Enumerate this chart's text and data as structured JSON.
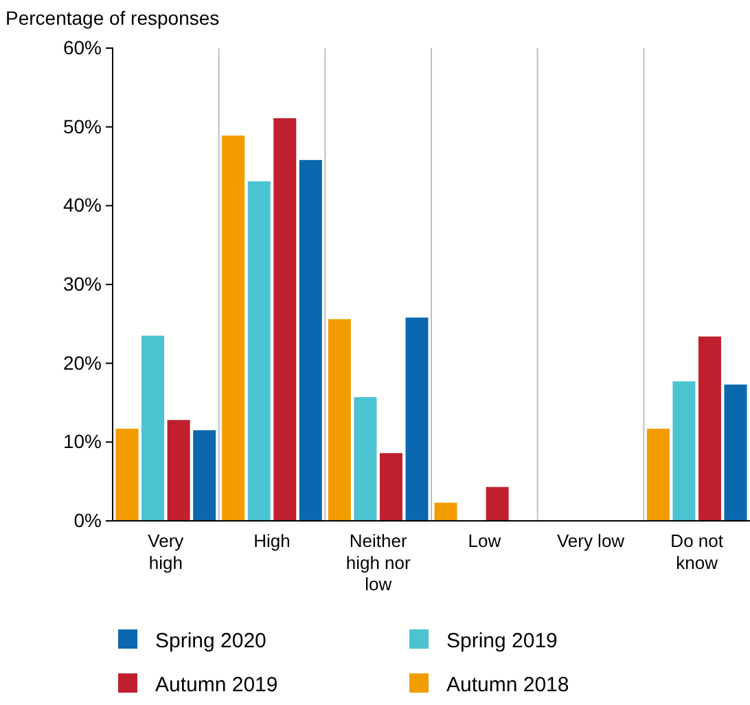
{
  "chart_data": {
    "type": "bar",
    "ylabel": "Percentage of responses",
    "categories": [
      "Very high",
      "High",
      "Neither high nor low",
      "Low",
      "Very low",
      "Do not know"
    ],
    "series": [
      {
        "name": "Autumn 2018",
        "color": "#f39c00",
        "values": [
          11.7,
          48.9,
          25.6,
          2.3,
          0,
          11.7
        ]
      },
      {
        "name": "Spring 2019",
        "color": "#4cc3d1",
        "values": [
          23.5,
          43.1,
          15.7,
          0,
          0,
          17.7
        ]
      },
      {
        "name": "Autumn 2019",
        "color": "#c0202e",
        "values": [
          12.8,
          51.1,
          8.6,
          4.3,
          0,
          23.4
        ]
      },
      {
        "name": "Spring 2020",
        "color": "#0b68ae",
        "values": [
          11.5,
          45.8,
          25.8,
          0,
          0,
          17.3
        ]
      }
    ],
    "ylim": [
      0,
      60
    ],
    "yticks": [
      {
        "value": 0,
        "label": "0%"
      },
      {
        "value": 10,
        "label": "10%"
      },
      {
        "value": 20,
        "label": "20%"
      },
      {
        "value": 30,
        "label": "30%"
      },
      {
        "value": 40,
        "label": "40%"
      },
      {
        "value": 50,
        "label": "50%"
      },
      {
        "value": 60,
        "label": "60%"
      }
    ],
    "grid": "x",
    "legend": "bottom"
  }
}
